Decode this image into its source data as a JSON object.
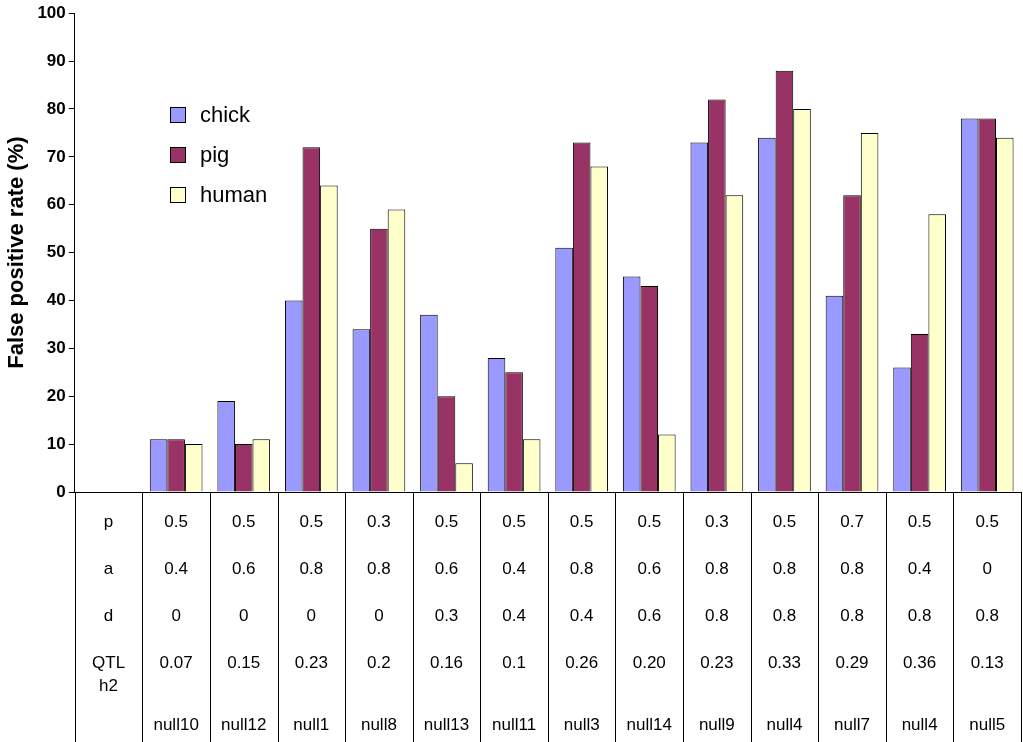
{
  "chart_data": {
    "type": "bar",
    "ylabel": "False positive rate (%)",
    "categories": [
      "p\na\nd\nQTL\nh2\n",
      "0.5\n0.4\n0\n0.07\n\nnull10",
      "0.5\n0.6\n0\n0.15\n\nnull12",
      "0.5\n0.8\n0\n0.23\n\nnull1",
      "0.3\n0.8\n0\n0.2\n\nnull8",
      "0.5\n0.6\n0.3\n0.16\n\nnull13",
      "0.5\n0.4\n0.4\n0.1\n\nnull11",
      "0.5\n0.8\n0.4\n0.26\n\nnull3",
      "0.5\n0.6\n0.6\n0.20\n\nnull14",
      "0.3\n0.8\n0.8\n0.23\n\nnull9",
      "0.5\n0.8\n0.8\n0.33\n\nnull4",
      "0.7\n0.8\n0.8\n0.29\n\nnull7",
      "0.5\n0.4\n0.8\n0.36\n\nnull4",
      "0.5\n0\n0.8\n0.13\n\nnull5"
    ],
    "series": [
      {
        "name": "chick",
        "color": "#9999ff",
        "values": [
          null,
          11,
          19,
          40,
          34,
          37,
          28,
          51,
          45,
          73,
          74,
          41,
          26,
          78
        ]
      },
      {
        "name": "pig",
        "color": "#993366",
        "values": [
          null,
          11,
          10,
          72,
          55,
          20,
          25,
          73,
          43,
          82,
          88,
          62,
          33,
          78
        ]
      },
      {
        "name": "human",
        "color": "#ffffcc",
        "values": [
          null,
          10,
          11,
          64,
          59,
          6,
          11,
          68,
          12,
          62,
          80,
          75,
          58,
          74
        ]
      }
    ],
    "ylim": [
      0,
      100
    ],
    "yticks": [
      0,
      10,
      20,
      30,
      40,
      50,
      60,
      70,
      80,
      90,
      100
    ],
    "grid": false,
    "legend": "top left"
  }
}
